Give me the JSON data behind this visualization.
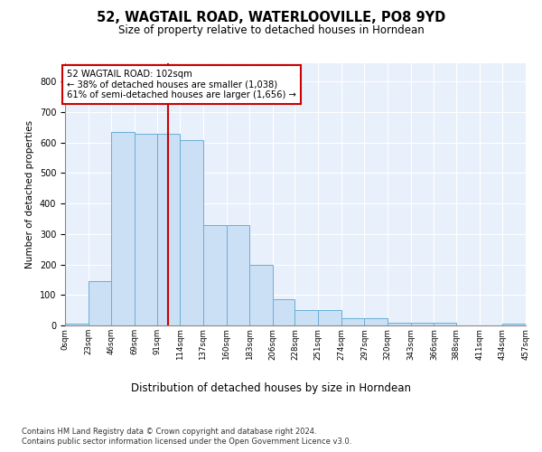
{
  "title": "52, WAGTAIL ROAD, WATERLOOVILLE, PO8 9YD",
  "subtitle": "Size of property relative to detached houses in Horndean",
  "xlabel": "Distribution of detached houses by size in Horndean",
  "ylabel": "Number of detached properties",
  "bar_color": "#cce0f5",
  "bar_edge_color": "#6aaed6",
  "vline_x": 102,
  "vline_color": "#cc0000",
  "annotation_line1": "52 WAGTAIL ROAD: 102sqm",
  "annotation_line2": "← 38% of detached houses are smaller (1,038)",
  "annotation_line3": "61% of semi-detached houses are larger (1,656) →",
  "annotation_box_color": "#cc0000",
  "bin_edges": [
    0,
    23,
    46,
    69,
    91,
    114,
    137,
    160,
    183,
    206,
    228,
    251,
    274,
    297,
    320,
    343,
    366,
    388,
    411,
    434,
    457
  ],
  "bar_heights": [
    5,
    145,
    635,
    630,
    630,
    608,
    330,
    330,
    200,
    85,
    50,
    50,
    25,
    25,
    10,
    10,
    10,
    0,
    0,
    5
  ],
  "ylim": [
    0,
    860
  ],
  "yticks": [
    0,
    100,
    200,
    300,
    400,
    500,
    600,
    700,
    800
  ],
  "footnote1": "Contains HM Land Registry data © Crown copyright and database right 2024.",
  "footnote2": "Contains public sector information licensed under the Open Government Licence v3.0.",
  "background_color": "#e8f0fb"
}
